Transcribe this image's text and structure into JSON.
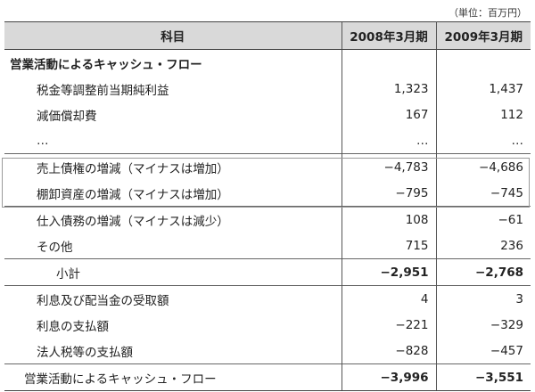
{
  "unit_note": "（単位：百万円）",
  "header": {
    "item": "科目",
    "col1": "2008年3月期",
    "col2": "2009年3月期"
  },
  "section_title": "営業活動によるキャッシュ・フロー",
  "rows": [
    {
      "label": "税金等調整前当期純利益",
      "v2008": "1,323",
      "v2009": "1,437"
    },
    {
      "label": "減価償却費",
      "v2008": "167",
      "v2009": "112"
    },
    {
      "label": "…",
      "v2008": "…",
      "v2009": "…"
    },
    {
      "label": "売上債権の増減（マイナスは増加）",
      "v2008": "−4,783",
      "v2009": "−4,686"
    },
    {
      "label": "棚卸資産の増減（マイナスは増加）",
      "v2008": "−795",
      "v2009": "−745"
    },
    {
      "label": "仕入債務の増減（マイナスは減少）",
      "v2008": "108",
      "v2009": "−61"
    },
    {
      "label": "その他",
      "v2008": "715",
      "v2009": "236"
    }
  ],
  "subtotal": {
    "label": "小計",
    "v2008": "−2,951",
    "v2009": "−2,768"
  },
  "rows2": [
    {
      "label": "利息及び配当金の受取額",
      "v2008": "4",
      "v2009": "3"
    },
    {
      "label": "利息の支払額",
      "v2008": "−221",
      "v2009": "−329"
    },
    {
      "label": "法人税等の支払額",
      "v2008": "−828",
      "v2009": "−457"
    }
  ],
  "total": {
    "label": "営業活動によるキャッシュ・フロー",
    "v2008": "−3,996",
    "v2009": "−3,551"
  }
}
